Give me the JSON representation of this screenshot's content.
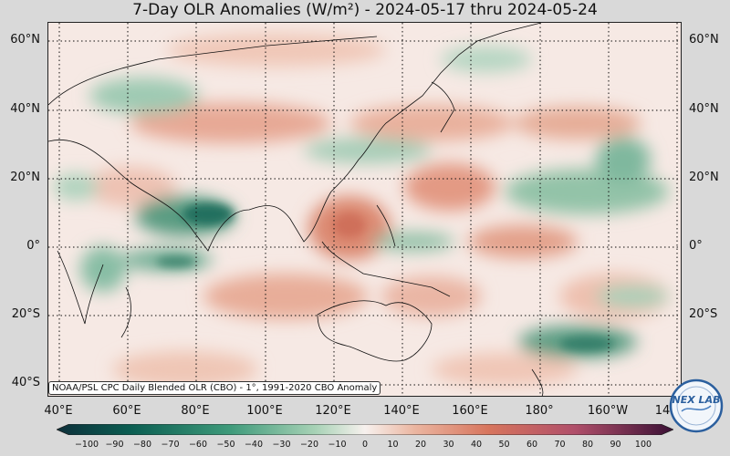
{
  "title": "7-Day OLR Anomalies (W/m²) - 2024-05-17 thru 2024-05-24",
  "source_note": "NOAA/PSL CPC Daily Blended OLR (CBO) - 1°, 1991-2020 CBO Anomaly",
  "logo_text": "NEX LAB",
  "lat_labels": [
    "60°N",
    "40°N",
    "20°N",
    "0°",
    "20°S",
    "40°S"
  ],
  "lon_labels": [
    "40°E",
    "60°E",
    "80°E",
    "100°E",
    "120°E",
    "140°E",
    "160°E",
    "180°",
    "160°W",
    "14"
  ],
  "colorbar": {
    "ticks": [
      "−100",
      "−90",
      "−80",
      "−70",
      "−60",
      "−50",
      "−40",
      "−30",
      "−20",
      "−10",
      "0",
      "10",
      "20",
      "30",
      "40",
      "50",
      "60",
      "70",
      "80",
      "90",
      "100"
    ],
    "min": -100,
    "max": 100,
    "negative_color": "#0b5e52",
    "positive_color": "#5c1a4f"
  }
}
